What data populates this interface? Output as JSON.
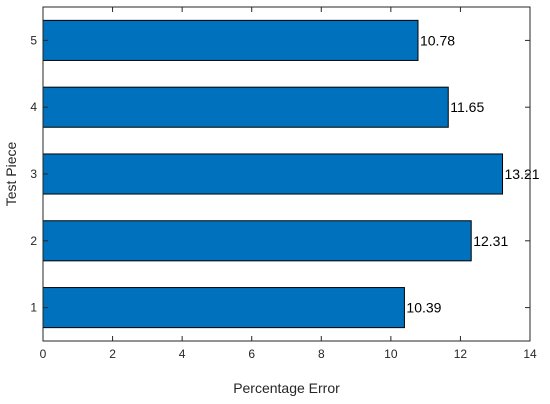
{
  "chart_data": {
    "type": "bar",
    "orientation": "horizontal",
    "title": "",
    "xlabel": "Percentage Error",
    "ylabel": "Test Piece",
    "categories": [
      "1",
      "2",
      "3",
      "4",
      "5"
    ],
    "values": [
      10.39,
      12.31,
      13.21,
      11.65,
      10.78
    ],
    "data_labels": [
      "10.39",
      "12.31",
      "13.21",
      "11.65",
      "10.78"
    ],
    "xlim": [
      0,
      14
    ],
    "xticks": [
      "0",
      "2",
      "4",
      "6",
      "8",
      "10",
      "12",
      "14"
    ],
    "grid": false,
    "legend": "none",
    "bar_color": "#0072BD",
    "bar_edge_color": "#000000"
  }
}
